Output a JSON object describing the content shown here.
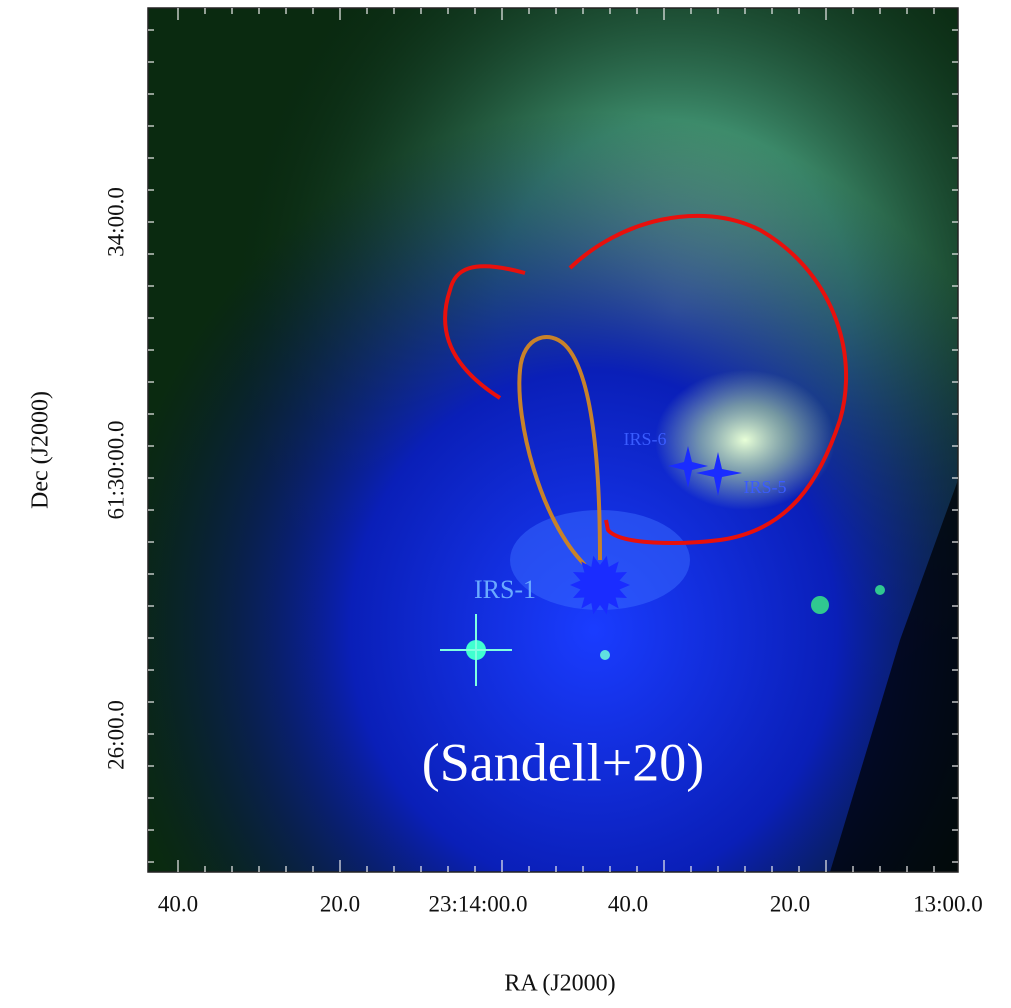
{
  "figure": {
    "x_axis": {
      "title": "RA (J2000)",
      "ticks": [
        "40.0",
        "20.0",
        "23:14:00.0",
        "40.0",
        "20.0",
        "13:00.0"
      ]
    },
    "y_axis": {
      "title": "Dec (J2000)",
      "ticks": [
        "34:00.0",
        "61:30:00.0",
        "26:00.0"
      ]
    },
    "labels": [
      "IRS-6",
      "IRS-5",
      "IRS-1"
    ],
    "credit": "(Sandell+20)"
  }
}
